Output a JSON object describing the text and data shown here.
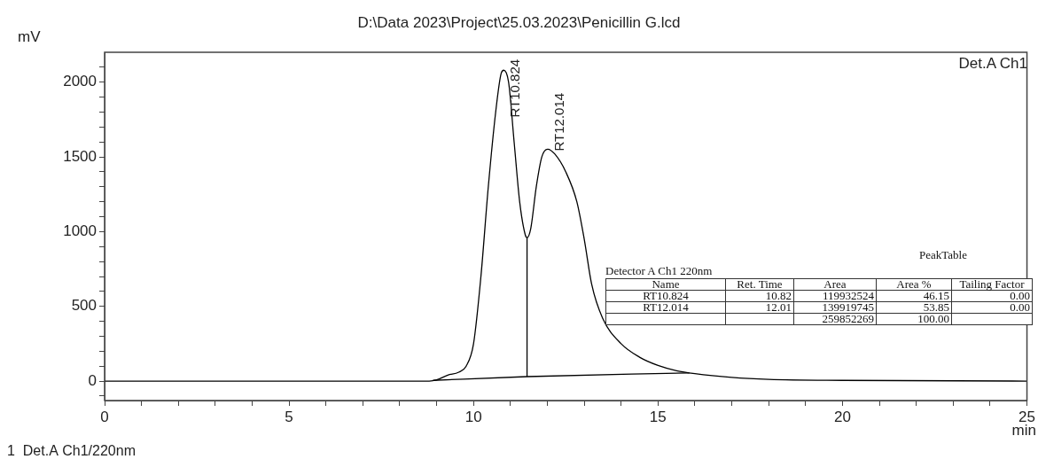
{
  "chart_data": [
    {
      "type": "line",
      "title": "D:\\Data 2023\\Project\\25.03.2023\\Penicillin G.lcd",
      "xlabel": "min",
      "ylabel": "mV",
      "annotations": [
        "Det.A Ch1",
        "1  Det.A Ch1/220nm",
        {
          "text": "RT10.824",
          "x": 10.82,
          "y": 2080
        },
        {
          "text": "RT12.014",
          "x": 12.01,
          "y": 1552
        }
      ],
      "xlim": [
        0,
        25
      ],
      "ylim": [
        -130,
        2200
      ],
      "xticks": [
        0,
        {
          "value": 1,
          "label": null
        },
        {
          "value": 2,
          "label": null
        },
        {
          "value": 3,
          "label": null
        },
        {
          "value": 4,
          "label": null
        },
        5,
        {
          "value": 6,
          "label": null
        },
        {
          "value": 7,
          "label": null
        },
        {
          "value": 8,
          "label": null
        },
        {
          "value": 9,
          "label": null
        },
        10,
        {
          "value": 11,
          "label": null
        },
        {
          "value": 12,
          "label": null
        },
        {
          "value": 13,
          "label": null
        },
        {
          "value": 14,
          "label": null
        },
        15,
        {
          "value": 16,
          "label": null
        },
        {
          "value": 17,
          "label": null
        },
        {
          "value": 18,
          "label": null
        },
        {
          "value": 19,
          "label": null
        },
        20,
        {
          "value": 21,
          "label": null
        },
        {
          "value": 22,
          "label": null
        },
        {
          "value": 23,
          "label": null
        },
        {
          "value": 24,
          "label": null
        },
        25
      ],
      "yticks": [
        {
          "value": -100,
          "label": null
        },
        0,
        {
          "value": 100,
          "label": null
        },
        {
          "value": 200,
          "label": null
        },
        {
          "value": 300,
          "label": null
        },
        {
          "value": 400,
          "label": null
        },
        500,
        {
          "value": 600,
          "label": null
        },
        {
          "value": 700,
          "label": null
        },
        {
          "value": 800,
          "label": null
        },
        {
          "value": 900,
          "label": null
        },
        1000,
        {
          "value": 1100,
          "label": null
        },
        {
          "value": 1200,
          "label": null
        },
        {
          "value": 1300,
          "label": null
        },
        {
          "value": 1400,
          "label": null
        },
        1500,
        {
          "value": 1600,
          "label": null
        },
        {
          "value": 1700,
          "label": null
        },
        {
          "value": 1800,
          "label": null
        },
        {
          "value": 1900,
          "label": null
        },
        2000,
        {
          "value": 2100,
          "label": null
        }
      ],
      "grid": false,
      "legend": false,
      "marker": "none",
      "line_style": "solid",
      "series": [
        {
          "color": "#000000",
          "x": [
            0,
            8.8,
            9.0,
            9.3,
            9.6,
            9.8,
            10.0,
            10.2,
            10.4,
            10.6,
            10.75,
            10.82,
            10.95,
            11.1,
            11.25,
            11.4,
            11.45,
            11.55,
            11.7,
            11.85,
            12.01,
            12.2,
            12.5,
            12.8,
            13.0,
            13.2,
            13.5,
            14.0,
            14.5,
            15.0,
            15.5,
            16.0,
            17,
            18,
            20,
            25
          ],
          "values": [
            0,
            0,
            8,
            40,
            60,
            100,
            250,
            700,
            1300,
            1800,
            2060,
            2080,
            2000,
            1600,
            1200,
            980,
            960,
            1020,
            1300,
            1500,
            1552,
            1520,
            1400,
            1200,
            950,
            650,
            420,
            250,
            160,
            105,
            70,
            50,
            25,
            12,
            5,
            0
          ]
        },
        {
          "color": "#000000",
          "x": [
            8.9,
            11.45,
            15.85
          ],
          "values": [
            5,
            30,
            55
          ]
        },
        {
          "color": "#000000",
          "x": [
            11.45,
            11.45
          ],
          "values": [
            30,
            960
          ]
        }
      ]
    },
    {
      "type": "other",
      "title": "PeakTable",
      "subtitle": "Detector A Ch1 220nm",
      "categories": [
        "Name",
        "Ret. Time",
        "Area",
        "Area %",
        "Tailing Factor"
      ],
      "cell_labels": [
        [
          "RT10.824",
          "10.82",
          "119932524",
          "46.15",
          "0.00"
        ],
        [
          "RT12.014",
          "12.01",
          "139919745",
          "53.85",
          "0.00"
        ],
        [
          null,
          null,
          "259852269",
          "100.00",
          null
        ]
      ]
    }
  ]
}
